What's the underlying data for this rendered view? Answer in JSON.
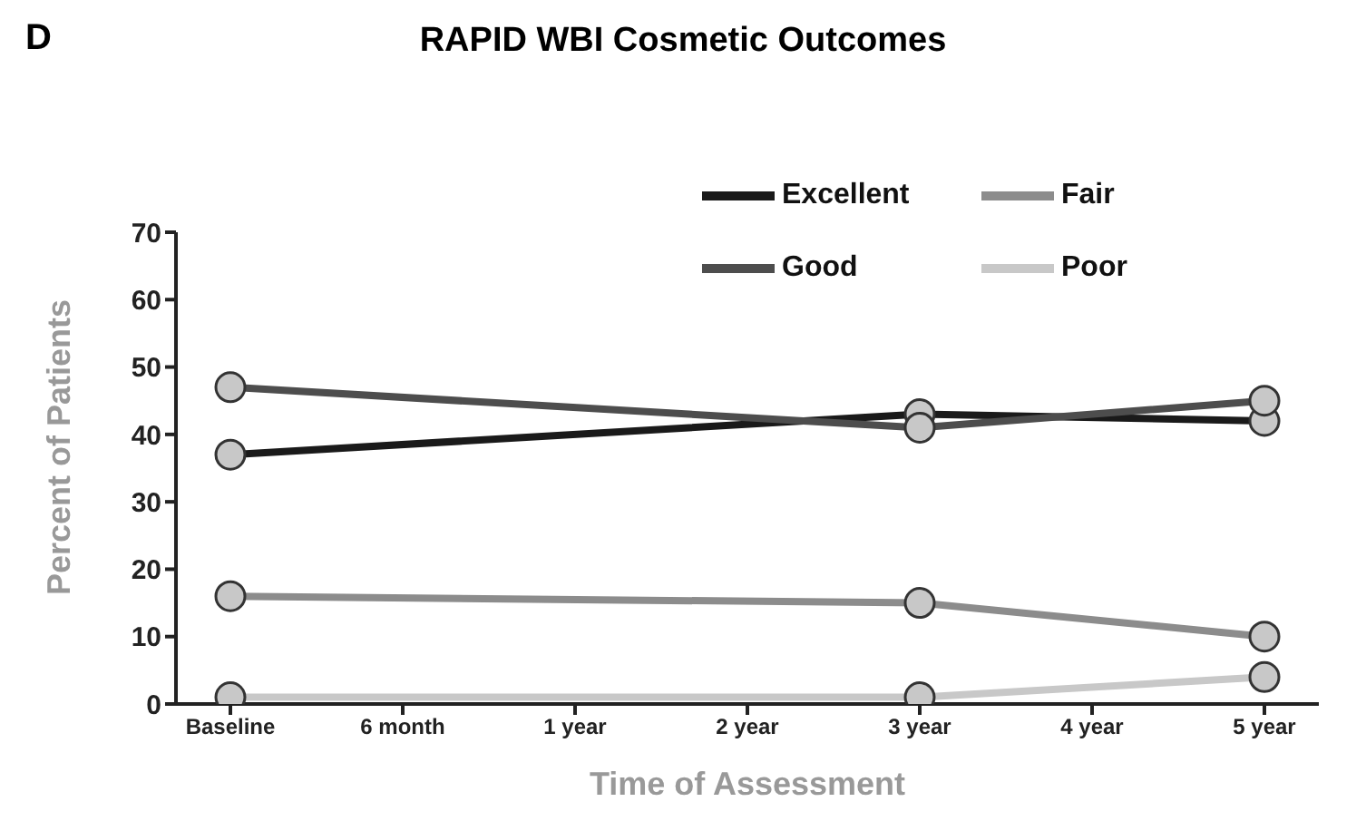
{
  "chart_data": {
    "type": "line",
    "title": "RAPID WBI Cosmetic Outcomes",
    "xlabel": "Time of Assessment",
    "ylabel": "Percent of Patients",
    "annotations": [
      "D"
    ],
    "categories": [
      "Baseline",
      "6 month",
      "1 year",
      "2 year",
      "3 year",
      "4 year",
      "5 year"
    ],
    "series": [
      {
        "name": "Excellent",
        "color": "#1a1a1a",
        "values": [
          37,
          null,
          null,
          null,
          43,
          null,
          42
        ]
      },
      {
        "name": "Fair",
        "color": "#8c8c8c",
        "values": [
          16,
          null,
          null,
          null,
          15,
          null,
          10
        ]
      },
      {
        "name": "Good",
        "color": "#4d4d4d",
        "values": [
          47,
          null,
          null,
          null,
          41,
          null,
          45
        ]
      },
      {
        "name": "Poor",
        "color": "#c8c8c8",
        "values": [
          1,
          null,
          null,
          null,
          1,
          null,
          4
        ]
      }
    ],
    "ylim": [
      0,
      70
    ],
    "yticks": [
      0,
      10,
      20,
      30,
      40,
      50,
      60,
      70
    ],
    "grid": false,
    "legend": "top right",
    "marker": "circle",
    "line_style": "solid"
  }
}
